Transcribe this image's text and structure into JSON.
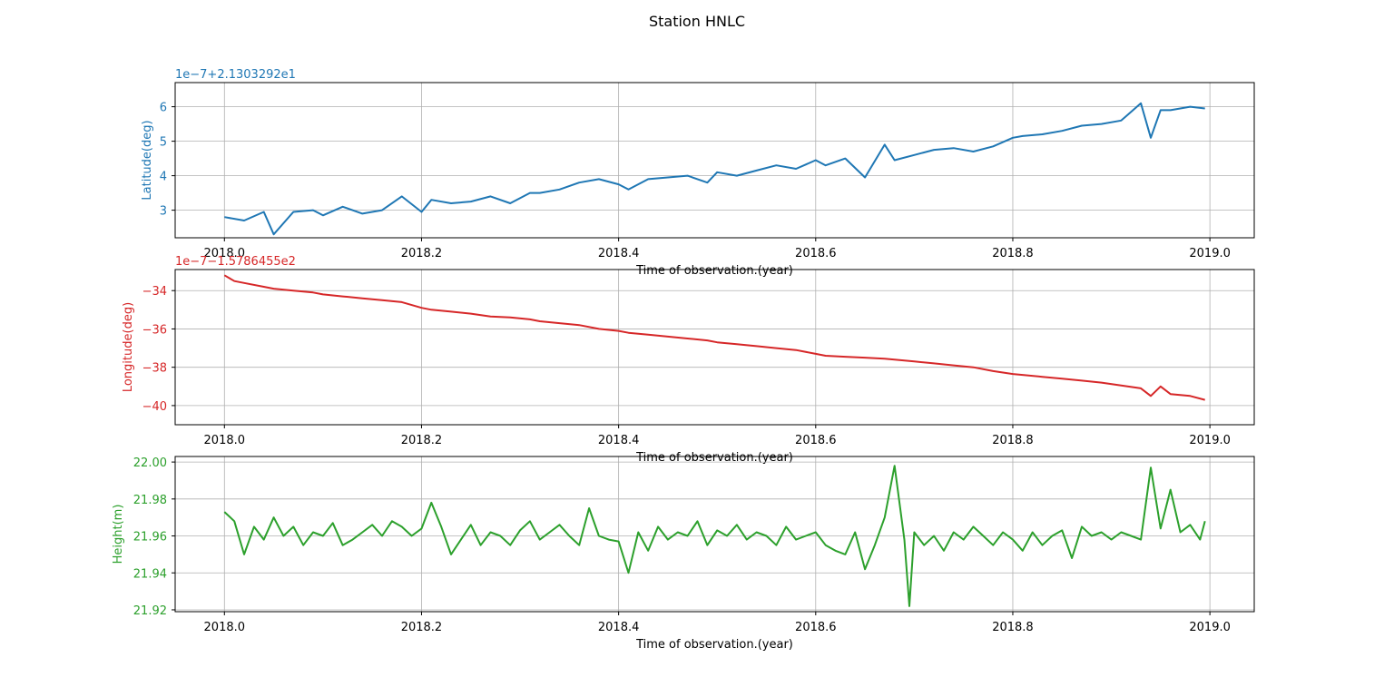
{
  "figure": {
    "title": "Station HNLC"
  },
  "chart_data": [
    {
      "type": "line",
      "title": "",
      "xlabel": "Time of observation.(year)",
      "ylabel": "Latitude(deg)",
      "offset_text": "1e−7+2.1303292e1",
      "color": "#1f77b4",
      "xlim": [
        2017.95,
        2019.045
      ],
      "ylim": [
        2.2,
        6.7
      ],
      "x_ticks": [
        2018.0,
        2018.2,
        2018.4,
        2018.6,
        2018.8,
        2019.0
      ],
      "x_tick_labels": [
        "2018.0",
        "2018.2",
        "2018.4",
        "2018.6",
        "2018.8",
        "2019.0"
      ],
      "y_ticks": [
        3,
        4,
        5,
        6
      ],
      "y_tick_labels": [
        "3",
        "4",
        "5",
        "6"
      ],
      "grid": true,
      "series": [
        {
          "x": [
            2018.0,
            2018.02,
            2018.04,
            2018.05,
            2018.07,
            2018.09,
            2018.1,
            2018.12,
            2018.14,
            2018.16,
            2018.18,
            2018.2,
            2018.21,
            2018.23,
            2018.25,
            2018.27,
            2018.29,
            2018.31,
            2018.32,
            2018.34,
            2018.36,
            2018.38,
            2018.4,
            2018.41,
            2018.43,
            2018.45,
            2018.47,
            2018.49,
            2018.5,
            2018.52,
            2018.54,
            2018.56,
            2018.58,
            2018.6,
            2018.61,
            2018.63,
            2018.65,
            2018.67,
            2018.68,
            2018.7,
            2018.72,
            2018.74,
            2018.76,
            2018.78,
            2018.8,
            2018.81,
            2018.83,
            2018.85,
            2018.87,
            2018.89,
            2018.91,
            2018.93,
            2018.94,
            2018.95,
            2018.96,
            2018.98,
            2018.995
          ],
          "y": [
            2.8,
            2.7,
            2.95,
            2.3,
            2.95,
            3.0,
            2.85,
            3.1,
            2.9,
            3.0,
            3.4,
            2.95,
            3.3,
            3.2,
            3.25,
            3.4,
            3.2,
            3.5,
            3.5,
            3.6,
            3.8,
            3.9,
            3.75,
            3.6,
            3.9,
            3.95,
            4.0,
            3.8,
            4.1,
            4.0,
            4.15,
            4.3,
            4.2,
            4.45,
            4.3,
            4.5,
            3.95,
            4.9,
            4.45,
            4.6,
            4.75,
            4.8,
            4.7,
            4.85,
            5.1,
            5.15,
            5.2,
            5.3,
            5.45,
            5.5,
            5.6,
            6.1,
            5.1,
            5.9,
            5.9,
            6.0,
            5.95
          ]
        }
      ]
    },
    {
      "type": "line",
      "title": "",
      "xlabel": "Time of observation.(year)",
      "ylabel": "Longitude(deg)",
      "offset_text": "1e−7−1.5786455e2",
      "color": "#d62728",
      "xlim": [
        2017.95,
        2019.045
      ],
      "ylim": [
        -41.0,
        -32.9
      ],
      "x_ticks": [
        2018.0,
        2018.2,
        2018.4,
        2018.6,
        2018.8,
        2019.0
      ],
      "x_tick_labels": [
        "2018.0",
        "2018.2",
        "2018.4",
        "2018.6",
        "2018.8",
        "2019.0"
      ],
      "y_ticks": [
        -34,
        -36,
        -38,
        -40
      ],
      "y_tick_labels": [
        "−34",
        "−36",
        "−38",
        "−40"
      ],
      "grid": true,
      "series": [
        {
          "x": [
            2018.0,
            2018.01,
            2018.02,
            2018.04,
            2018.05,
            2018.07,
            2018.09,
            2018.1,
            2018.12,
            2018.14,
            2018.16,
            2018.18,
            2018.2,
            2018.21,
            2018.23,
            2018.25,
            2018.27,
            2018.29,
            2018.31,
            2018.32,
            2018.34,
            2018.36,
            2018.38,
            2018.4,
            2018.41,
            2018.43,
            2018.45,
            2018.47,
            2018.49,
            2018.5,
            2018.52,
            2018.54,
            2018.56,
            2018.58,
            2018.6,
            2018.61,
            2018.63,
            2018.65,
            2018.67,
            2018.68,
            2018.7,
            2018.72,
            2018.74,
            2018.76,
            2018.78,
            2018.8,
            2018.81,
            2018.83,
            2018.85,
            2018.87,
            2018.89,
            2018.91,
            2018.93,
            2018.94,
            2018.95,
            2018.96,
            2018.98,
            2018.995
          ],
          "y": [
            -33.2,
            -33.5,
            -33.6,
            -33.8,
            -33.9,
            -34.0,
            -34.1,
            -34.2,
            -34.3,
            -34.4,
            -34.5,
            -34.6,
            -34.9,
            -35.0,
            -35.1,
            -35.2,
            -35.35,
            -35.4,
            -35.5,
            -35.6,
            -35.7,
            -35.8,
            -36.0,
            -36.1,
            -36.2,
            -36.3,
            -36.4,
            -36.5,
            -36.6,
            -36.7,
            -36.8,
            -36.9,
            -37.0,
            -37.1,
            -37.3,
            -37.4,
            -37.45,
            -37.5,
            -37.55,
            -37.6,
            -37.7,
            -37.8,
            -37.9,
            -38.0,
            -38.2,
            -38.35,
            -38.4,
            -38.5,
            -38.6,
            -38.7,
            -38.8,
            -38.95,
            -39.1,
            -39.5,
            -39.0,
            -39.4,
            -39.5,
            -39.7
          ]
        }
      ]
    },
    {
      "type": "line",
      "title": "",
      "xlabel": "Time of observation.(year)",
      "ylabel": "Height(m)",
      "offset_text": "",
      "color": "#2ca02c",
      "xlim": [
        2017.95,
        2019.045
      ],
      "ylim": [
        21.919,
        22.003
      ],
      "x_ticks": [
        2018.0,
        2018.2,
        2018.4,
        2018.6,
        2018.8,
        2019.0
      ],
      "x_tick_labels": [
        "2018.0",
        "2018.2",
        "2018.4",
        "2018.6",
        "2018.8",
        "2019.0"
      ],
      "y_ticks": [
        21.92,
        21.94,
        21.96,
        21.98,
        22.0
      ],
      "y_tick_labels": [
        "21.92",
        "21.94",
        "21.96",
        "21.98",
        "22.00"
      ],
      "grid": true,
      "series": [
        {
          "x": [
            2018.0,
            2018.01,
            2018.02,
            2018.03,
            2018.04,
            2018.05,
            2018.06,
            2018.07,
            2018.08,
            2018.09,
            2018.1,
            2018.11,
            2018.12,
            2018.13,
            2018.14,
            2018.15,
            2018.16,
            2018.17,
            2018.18,
            2018.19,
            2018.2,
            2018.21,
            2018.22,
            2018.23,
            2018.24,
            2018.25,
            2018.26,
            2018.27,
            2018.28,
            2018.29,
            2018.3,
            2018.31,
            2018.32,
            2018.33,
            2018.34,
            2018.35,
            2018.36,
            2018.37,
            2018.38,
            2018.39,
            2018.4,
            2018.41,
            2018.42,
            2018.43,
            2018.44,
            2018.45,
            2018.46,
            2018.47,
            2018.48,
            2018.49,
            2018.5,
            2018.51,
            2018.52,
            2018.53,
            2018.54,
            2018.55,
            2018.56,
            2018.57,
            2018.58,
            2018.59,
            2018.6,
            2018.61,
            2018.62,
            2018.63,
            2018.64,
            2018.65,
            2018.66,
            2018.67,
            2018.68,
            2018.69,
            2018.695,
            2018.7,
            2018.71,
            2018.72,
            2018.73,
            2018.74,
            2018.75,
            2018.76,
            2018.77,
            2018.78,
            2018.79,
            2018.8,
            2018.81,
            2018.82,
            2018.83,
            2018.84,
            2018.85,
            2018.86,
            2018.87,
            2018.88,
            2018.89,
            2018.9,
            2018.91,
            2018.92,
            2018.93,
            2018.94,
            2018.95,
            2018.96,
            2018.97,
            2018.98,
            2018.99,
            2018.995
          ],
          "y": [
            21.973,
            21.968,
            21.95,
            21.965,
            21.958,
            21.97,
            21.96,
            21.965,
            21.955,
            21.962,
            21.96,
            21.967,
            21.955,
            21.958,
            21.962,
            21.966,
            21.96,
            21.968,
            21.965,
            21.96,
            21.964,
            21.978,
            21.965,
            21.95,
            21.958,
            21.966,
            21.955,
            21.962,
            21.96,
            21.955,
            21.963,
            21.968,
            21.958,
            21.962,
            21.966,
            21.96,
            21.955,
            21.975,
            21.96,
            21.958,
            21.957,
            21.94,
            21.962,
            21.952,
            21.965,
            21.958,
            21.962,
            21.96,
            21.968,
            21.955,
            21.963,
            21.96,
            21.966,
            21.958,
            21.962,
            21.96,
            21.955,
            21.965,
            21.958,
            21.96,
            21.962,
            21.955,
            21.952,
            21.95,
            21.962,
            21.942,
            21.955,
            21.97,
            21.998,
            21.958,
            21.922,
            21.962,
            21.955,
            21.96,
            21.952,
            21.962,
            21.958,
            21.965,
            21.96,
            21.955,
            21.962,
            21.958,
            21.952,
            21.962,
            21.955,
            21.96,
            21.963,
            21.948,
            21.965,
            21.96,
            21.962,
            21.958,
            21.962,
            21.96,
            21.958,
            21.997,
            21.964,
            21.985,
            21.962,
            21.966,
            21.958,
            21.968
          ]
        }
      ]
    }
  ]
}
